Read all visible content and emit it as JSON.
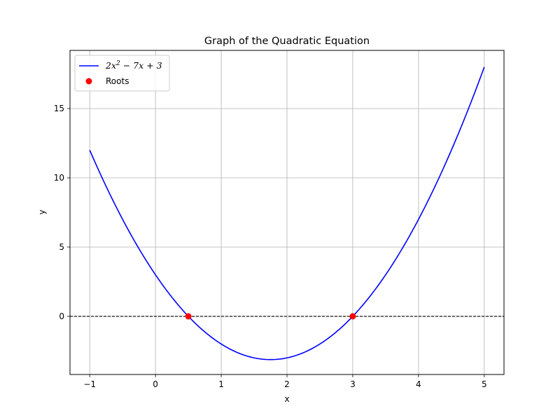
{
  "chart_data": {
    "type": "line",
    "title": "Graph of the Quadratic Equation",
    "xlabel": "x",
    "ylabel": "y",
    "xlim": [
      -1.3,
      5.3
    ],
    "ylim": [
      -4.2,
      19.2
    ],
    "xticks": [
      -1,
      0,
      1,
      2,
      3,
      4,
      5
    ],
    "xtick_labels": [
      "−1",
      "0",
      "1",
      "2",
      "3",
      "4",
      "5"
    ],
    "yticks": [
      0,
      5,
      10,
      15
    ],
    "ytick_labels": [
      "0",
      "5",
      "10",
      "15"
    ],
    "grid": true,
    "legend_position": "upper-left",
    "series": [
      {
        "name": "2x^2 - 7x + 3",
        "legend_label": {
          "base": "2x",
          "sup": "2",
          "rest": " − 7x + 3"
        },
        "type": "line",
        "color": "#0000ff",
        "coefficients": {
          "a": 2,
          "b": -7,
          "c": 3
        },
        "x_range": [
          -1,
          5
        ]
      },
      {
        "name": "Roots",
        "type": "scatter",
        "color": "#ff0000",
        "points": [
          {
            "x": 0.5,
            "y": 0
          },
          {
            "x": 3,
            "y": 0
          }
        ]
      }
    ],
    "reference_lines": [
      {
        "orientation": "horizontal",
        "y": 0,
        "style": "dashed",
        "color": "#000000"
      }
    ]
  }
}
